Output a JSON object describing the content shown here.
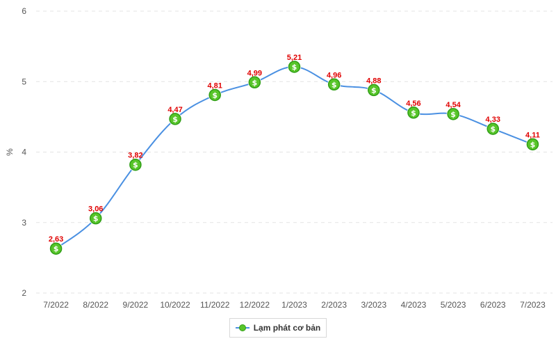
{
  "chart_data": {
    "type": "line",
    "categories": [
      "7/2022",
      "8/2022",
      "9/2022",
      "10/2022",
      "11/2022",
      "12/2022",
      "1/2023",
      "2/2023",
      "3/2023",
      "4/2023",
      "5/2023",
      "6/2023",
      "7/2023"
    ],
    "series": [
      {
        "name": "Lạm phát cơ bản",
        "values": [
          2.63,
          3.06,
          3.82,
          4.47,
          4.81,
          4.99,
          5.21,
          4.96,
          4.88,
          4.56,
          4.54,
          4.33,
          4.11
        ],
        "data_labels": [
          "2,63",
          "3,06",
          "3,82",
          "4,47",
          "4,81",
          "4,99",
          "5,21",
          "4,96",
          "4,88",
          "4,56",
          "4,54",
          "4,33",
          "4,11"
        ]
      }
    ],
    "ylabel": "%",
    "xlabel": "",
    "ylim": [
      2,
      6
    ],
    "yticks": [
      2,
      3,
      4,
      5,
      6
    ],
    "grid": true,
    "legend_position": "bottom-center",
    "colors": {
      "line": "#4a90e2",
      "marker_fill": "#58c52a",
      "marker_stroke": "#2f9e16",
      "data_label": "#e00000",
      "grid": "#e3e3e3"
    },
    "marker_icon": "dollar-coin-icon",
    "marker_glyph": "$"
  }
}
